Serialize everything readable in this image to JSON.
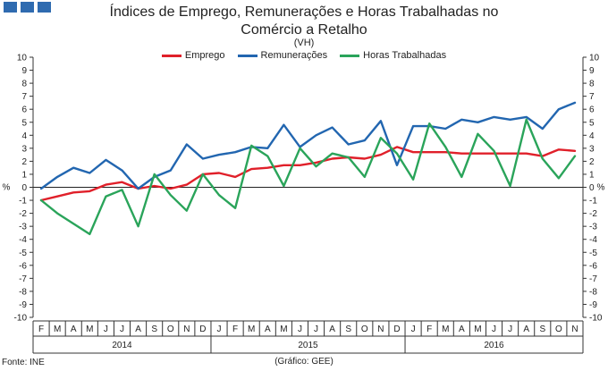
{
  "header": {
    "logo_icon": "ine-logo-icon"
  },
  "chart_data": {
    "type": "line",
    "title_line1": "Índices de Emprego, Remunerações e Horas Trabalhadas no",
    "title_line2": "Comércio a Retalho",
    "subtitle": "(VH)",
    "ylabel_left": "%",
    "ylabel_right": "%",
    "ylim": [
      -10,
      10
    ],
    "yticks": [
      -10,
      -9,
      -8,
      -7,
      -6,
      -5,
      -4,
      -3,
      -2,
      -1,
      0,
      1,
      2,
      3,
      4,
      5,
      6,
      7,
      8,
      9,
      10
    ],
    "grid": false,
    "legend_position": "top-center",
    "categories": [
      "F",
      "M",
      "A",
      "M",
      "J",
      "J",
      "A",
      "S",
      "O",
      "N",
      "D",
      "J",
      "F",
      "M",
      "A",
      "M",
      "J",
      "J",
      "A",
      "S",
      "O",
      "N",
      "D",
      "J",
      "F",
      "M",
      "A",
      "M",
      "J",
      "J",
      "A",
      "S",
      "O",
      "N"
    ],
    "years": [
      {
        "label": "2014",
        "start": 0,
        "end": 10
      },
      {
        "label": "2015",
        "start": 11,
        "end": 22
      },
      {
        "label": "2016",
        "start": 23,
        "end": 33
      }
    ],
    "series": [
      {
        "name": "Emprego",
        "color": "#e0202a",
        "values": [
          -1.0,
          -0.7,
          -0.4,
          -0.3,
          0.2,
          0.4,
          -0.1,
          0.1,
          -0.1,
          0.2,
          1.0,
          1.1,
          0.8,
          1.4,
          1.5,
          1.7,
          1.7,
          1.9,
          2.2,
          2.3,
          2.2,
          2.5,
          3.1,
          2.7,
          2.7,
          2.7,
          2.6,
          2.6,
          2.6,
          2.6,
          2.6,
          2.4,
          2.9,
          2.8
        ]
      },
      {
        "name": "Remunerações",
        "color": "#2266b0",
        "values": [
          -0.1,
          0.8,
          1.5,
          1.1,
          2.1,
          1.3,
          -0.1,
          0.8,
          1.3,
          3.3,
          2.2,
          2.5,
          2.7,
          3.1,
          3.0,
          4.8,
          3.1,
          4.0,
          4.6,
          3.3,
          3.6,
          5.1,
          1.7,
          4.7,
          4.7,
          4.5,
          5.2,
          5.0,
          5.4,
          5.2,
          5.4,
          4.5,
          6.0,
          6.5
        ]
      },
      {
        "name": "Horas Trabalhadas",
        "color": "#2aa45a",
        "values": [
          -1.0,
          -2.0,
          -2.8,
          -3.6,
          -0.7,
          -0.2,
          -3.0,
          1.0,
          -0.6,
          -1.8,
          1.0,
          -0.6,
          -1.6,
          3.2,
          2.4,
          0.1,
          3.0,
          1.6,
          2.6,
          2.3,
          0.8,
          3.8,
          2.6,
          0.6,
          4.9,
          3.1,
          0.8,
          4.1,
          2.8,
          0.1,
          5.2,
          2.2,
          0.7,
          2.4
        ]
      }
    ],
    "source": "Fonte: INE",
    "credit": "(Gráfico: GEE)"
  }
}
